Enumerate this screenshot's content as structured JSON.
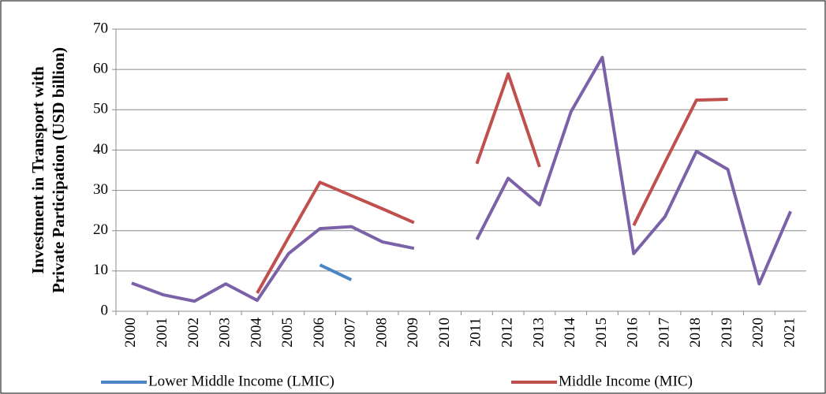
{
  "chart_data": {
    "type": "line",
    "y_label": [
      "Investment in Transport with",
      "Private Participation (USD billion)"
    ],
    "categories": [
      "2000",
      "2001",
      "2002",
      "2003",
      "2004",
      "2005",
      "2006",
      "2007",
      "2008",
      "2009",
      "2010",
      "2011",
      "2012",
      "2013",
      "2014",
      "2015",
      "2016",
      "2017",
      "2018",
      "2019",
      "2020",
      "2021"
    ],
    "series": [
      {
        "color": "#7b62a8",
        "values": [
          7,
          4.1,
          2.5,
          6.8,
          2.7,
          14.3,
          20.5,
          21,
          17.2,
          15.6,
          null,
          17.8,
          33,
          26.4,
          49.5,
          63,
          14.3,
          23.5,
          39.7,
          35.2,
          6.8,
          24.8
        ]
      },
      {
        "name": "Lower Middle Income (LMIC)",
        "color": "#4a86c5",
        "values": [
          null,
          null,
          null,
          null,
          null,
          null,
          11.5,
          7.8,
          null,
          null,
          null,
          null,
          null,
          null,
          null,
          null,
          null,
          null,
          null,
          null,
          null,
          null
        ]
      },
      {
        "name": "Middle Income (MIC)",
        "color": "#c0504d",
        "values": [
          null,
          null,
          null,
          null,
          4.5,
          18.3,
          32,
          28.7,
          25.4,
          22,
          null,
          36.6,
          58.9,
          35.8,
          null,
          null,
          21.3,
          37,
          52.4,
          52.6,
          null,
          null
        ]
      }
    ],
    "ylim": [
      0,
      70
    ],
    "yticks": [
      0,
      10,
      20,
      30,
      40,
      50,
      60,
      70
    ],
    "grid": true
  }
}
